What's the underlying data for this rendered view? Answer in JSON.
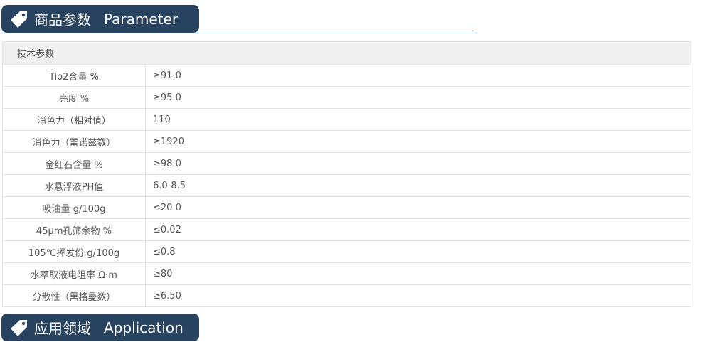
{
  "sections": [
    {
      "title_cn": "商品参数",
      "title_en": "Parameter",
      "icon": "tag-icon"
    },
    {
      "title_cn": "应用领域",
      "title_en": "Application",
      "icon": "tag-icon"
    }
  ],
  "colors": {
    "badge": "#27435f"
  },
  "table": {
    "header": "技术参数",
    "rows": [
      {
        "name": "Tio2含量 %",
        "value": "≥91.0"
      },
      {
        "name": "亮度 %",
        "value": "≥95.0"
      },
      {
        "name": "消色力（相对值）",
        "value": "110"
      },
      {
        "name": "消色力（雷诺兹数）",
        "value": "≥1920"
      },
      {
        "name": "金红石含量 %",
        "value": "≥98.0"
      },
      {
        "name": "水悬浮液PH值",
        "value": "6.0-8.5"
      },
      {
        "name": "吸油量 g/100g",
        "value": "≤20.0"
      },
      {
        "name": "45μm孔筛余物 %",
        "value": "≤0.02"
      },
      {
        "name": "105℃挥发份 g/100g",
        "value": "≤0.8"
      },
      {
        "name": "水萃取液电阻率 Ω·m",
        "value": "≥80"
      },
      {
        "name": "分散性（黑格曼数）",
        "value": "≥6.50"
      }
    ]
  }
}
